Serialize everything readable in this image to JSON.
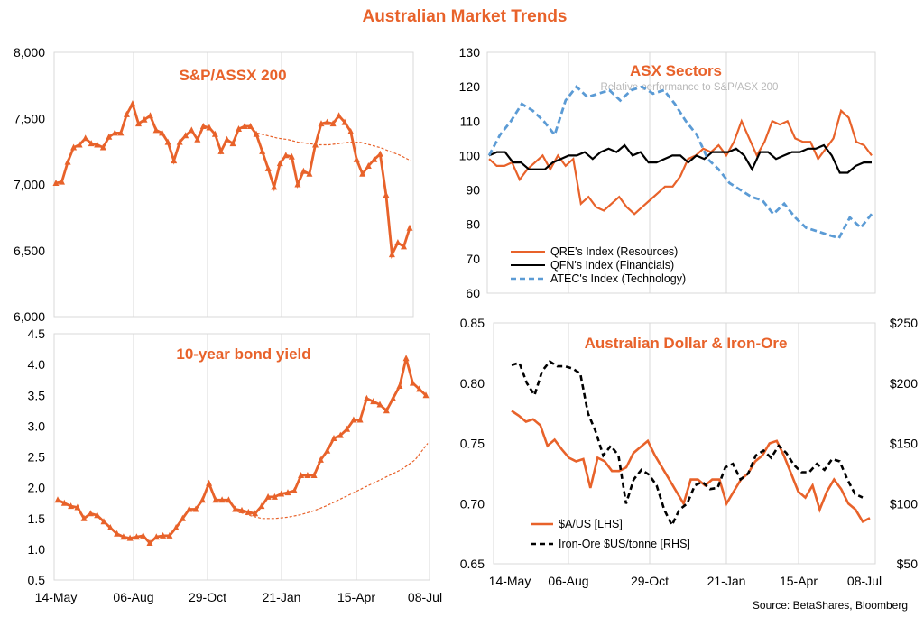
{
  "title": "Australian Market Trends",
  "source": "Source: BetaShares, Bloomberg",
  "chart_data": [
    {
      "id": "asx200",
      "type": "line",
      "title": "S&P/ASSX 200",
      "ylim": [
        6000,
        8000
      ],
      "yticks": [
        "6,000",
        "6,500",
        "7,000",
        "7,500",
        "8,000"
      ],
      "ytick_values": [
        6000,
        6500,
        7000,
        7500,
        8000
      ],
      "xlim": [
        0,
        56
      ],
      "grid": "vertical",
      "colors": {
        "main": "#E8622A",
        "trend": "#E8622A"
      },
      "series": [
        {
          "values": [
            7010,
            7020,
            7170,
            7280,
            7300,
            7350,
            7310,
            7300,
            7280,
            7360,
            7390,
            7390,
            7530,
            7610,
            7460,
            7490,
            7520,
            7410,
            7390,
            7320,
            7180,
            7320,
            7370,
            7410,
            7340,
            7440,
            7430,
            7380,
            7250,
            7340,
            7310,
            7420,
            7440,
            7440,
            7380,
            7250,
            7120,
            6980,
            7160,
            7220,
            7210,
            7000,
            7100,
            7080,
            7300,
            7460,
            7470,
            7460,
            7520,
            7470,
            7400,
            7190,
            7080,
            7140,
            7190,
            7230,
            6920,
            6470,
            6560,
            6530,
            6670
          ]
        },
        {
          "values": [
            7390,
            7370,
            7350,
            7340,
            7320,
            7310,
            7300,
            7300,
            7310,
            7320,
            7320,
            7300,
            7280,
            7250,
            7220,
            7180
          ]
        }
      ]
    },
    {
      "id": "bond",
      "type": "line",
      "title": "10-year bond yield",
      "ylim": [
        0.5,
        4.5
      ],
      "yticks": [
        "0.5",
        "1.0",
        "1.5",
        "2.0",
        "2.5",
        "3.0",
        "3.5",
        "4.0",
        "4.5"
      ],
      "ytick_values": [
        0.5,
        1.0,
        1.5,
        2.0,
        2.5,
        3.0,
        3.5,
        4.0,
        4.5
      ],
      "xticks": [
        "14-May",
        "06-Aug",
        "29-Oct",
        "21-Jan",
        "15-Apr",
        "08-Jul"
      ],
      "grid": "vertical",
      "colors": {
        "main": "#E8622A",
        "trend": "#E8622A"
      },
      "series": [
        {
          "values": [
            1.8,
            1.75,
            1.7,
            1.68,
            1.5,
            1.58,
            1.55,
            1.45,
            1.35,
            1.25,
            1.2,
            1.18,
            1.2,
            1.22,
            1.1,
            1.2,
            1.22,
            1.22,
            1.35,
            1.5,
            1.65,
            1.65,
            1.8,
            2.07,
            1.8,
            1.8,
            1.8,
            1.65,
            1.63,
            1.6,
            1.58,
            1.7,
            1.85,
            1.85,
            1.9,
            1.92,
            1.95,
            2.2,
            2.2,
            2.2,
            2.45,
            2.6,
            2.8,
            2.85,
            2.95,
            3.1,
            3.1,
            3.45,
            3.4,
            3.35,
            3.25,
            3.45,
            3.65,
            4.1,
            3.7,
            3.6,
            3.5
          ]
        },
        {
          "values": [
            1.62,
            1.55,
            1.5,
            1.5,
            1.52,
            1.56,
            1.62,
            1.7,
            1.8,
            1.9,
            2.0,
            2.1,
            2.2,
            2.3,
            2.45,
            2.72
          ]
        }
      ]
    },
    {
      "id": "sectors",
      "type": "line",
      "title": "ASX Sectors",
      "subtitle": "Relative performance to S&P/ASX 200",
      "ylim": [
        60,
        130
      ],
      "yticks": [
        "60",
        "70",
        "80",
        "90",
        "100",
        "110",
        "120",
        "130"
      ],
      "ytick_values": [
        60,
        70,
        80,
        90,
        100,
        110,
        120,
        130
      ],
      "grid": "vertical",
      "legend": "bottom-left",
      "series": [
        {
          "name": "QRE's Index (Resources)",
          "color": "#E8622A",
          "dash": "solid",
          "values": [
            99,
            97,
            97,
            98,
            93,
            96,
            98,
            100,
            96,
            100,
            97,
            99,
            86,
            88,
            85,
            84,
            86,
            88,
            85,
            83,
            85,
            87,
            89,
            91,
            91,
            94,
            99,
            100,
            102,
            101,
            103,
            100,
            104,
            110,
            105,
            100,
            104,
            110,
            109,
            110,
            105,
            104,
            104,
            99,
            102,
            105,
            113,
            111,
            104,
            103,
            100
          ]
        },
        {
          "name": "QFN's Index (Financials)",
          "color": "#000000",
          "dash": "solid",
          "values": [
            100,
            101,
            101,
            98,
            98,
            96,
            96,
            96,
            98,
            99,
            100,
            100,
            101,
            99,
            101,
            102,
            101,
            103,
            100,
            101,
            98,
            98,
            99,
            100,
            100,
            98,
            100,
            99,
            101,
            101,
            101,
            102,
            100,
            96,
            101,
            101,
            99,
            100,
            101,
            101,
            102,
            102,
            103,
            100,
            95,
            95,
            97,
            98,
            98
          ]
        },
        {
          "name": "ATEC's Index (Technology)",
          "color": "#5B9BD5",
          "dash": "dash",
          "values": [
            100,
            106,
            110,
            115,
            113,
            110,
            106,
            116,
            120,
            117,
            118,
            119,
            116,
            119,
            120,
            118,
            119,
            115,
            110,
            106,
            99,
            96,
            92,
            90,
            88,
            87,
            83,
            86,
            82,
            79,
            78,
            77,
            76,
            82,
            79,
            83
          ]
        }
      ]
    },
    {
      "id": "fx_ore",
      "type": "line",
      "title": "Australian Dollar & Iron-Ore",
      "ylim": [
        0.65,
        0.85
      ],
      "yticks": [
        "0.65",
        "0.70",
        "0.75",
        "0.80",
        "0.85"
      ],
      "ytick_values": [
        0.65,
        0.7,
        0.75,
        0.8,
        0.85
      ],
      "y2lim": [
        50,
        250
      ],
      "y2ticks": [
        "$50",
        "$100",
        "$150",
        "$200",
        "$250"
      ],
      "y2tick_values": [
        50,
        100,
        150,
        200,
        250
      ],
      "xticks": [
        "14-May",
        "06-Aug",
        "29-Oct",
        "21-Jan",
        "15-Apr",
        "08-Jul"
      ],
      "grid": "vertical",
      "legend": "bottom-left",
      "series": [
        {
          "name": "$A/US [LHS]",
          "color": "#E8622A",
          "dash": "solid",
          "axis": "left",
          "values": [
            0.777,
            0.773,
            0.768,
            0.77,
            0.765,
            0.748,
            0.753,
            0.745,
            0.738,
            0.735,
            0.737,
            0.713,
            0.738,
            0.735,
            0.727,
            0.727,
            0.73,
            0.742,
            0.747,
            0.752,
            0.74,
            0.73,
            0.72,
            0.71,
            0.7,
            0.72,
            0.72,
            0.715,
            0.72,
            0.72,
            0.7,
            0.71,
            0.72,
            0.725,
            0.735,
            0.74,
            0.75,
            0.752,
            0.74,
            0.725,
            0.71,
            0.705,
            0.715,
            0.695,
            0.71,
            0.72,
            0.712,
            0.7,
            0.695,
            0.685,
            0.688
          ]
        },
        {
          "name": "Iron-Ore $US/tonne [RHS]",
          "color": "#000000",
          "dash": "dash",
          "axis": "right",
          "values": [
            215,
            217,
            200,
            190,
            210,
            218,
            214,
            214,
            212,
            208,
            175,
            160,
            140,
            148,
            140,
            100,
            120,
            128,
            124,
            115,
            95,
            82,
            95,
            100,
            115,
            118,
            112,
            113,
            130,
            133,
            120,
            125,
            140,
            144,
            138,
            148,
            142,
            132,
            126,
            126,
            133,
            128,
            137,
            135,
            120,
            108,
            105
          ]
        }
      ]
    }
  ]
}
